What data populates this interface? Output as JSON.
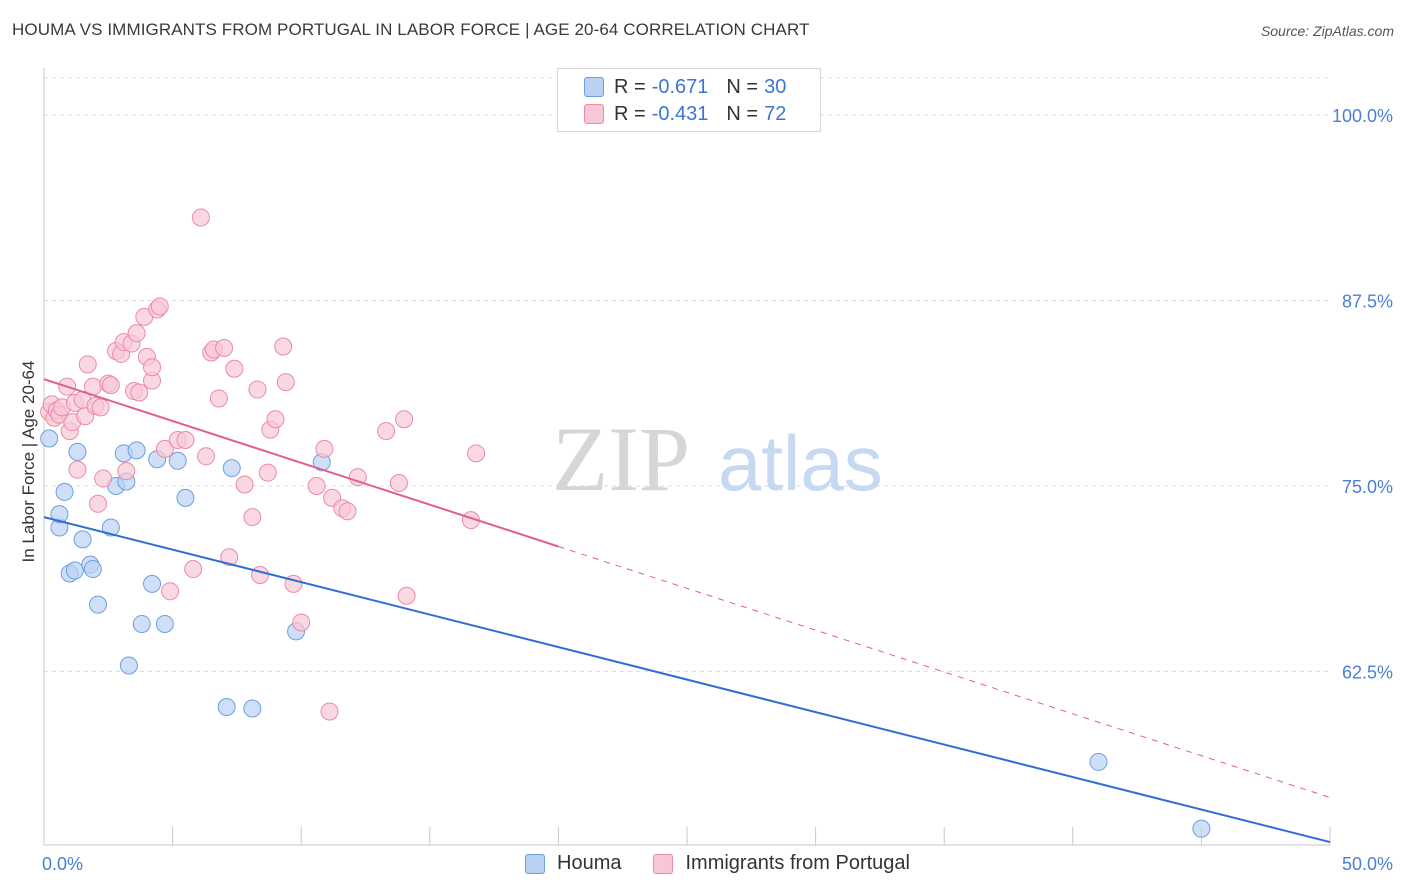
{
  "header": {
    "title": "HOUMA VS IMMIGRANTS FROM PORTUGAL IN LABOR FORCE | AGE 20-64 CORRELATION CHART",
    "source": "Source: ZipAtlas.com"
  },
  "legend": {
    "rows": [
      {
        "r_label": "R =",
        "r_value": "-0.671",
        "n_label": "N =",
        "n_value": "30"
      },
      {
        "r_label": "R =",
        "r_value": "-0.431",
        "n_label": "N =",
        "n_value": "72"
      }
    ]
  },
  "bottom_legend": {
    "series_1": "Houma",
    "series_2": "Immigrants from Portugal"
  },
  "watermark": {
    "zip": "ZIP",
    "atlas": "atlas"
  },
  "colors": {
    "houma_fill": "#b9d1f3",
    "houma_stroke": "#6e9fe0",
    "houma_line": "#2f6fd1",
    "portugal_fill": "#f8c7d6",
    "portugal_stroke": "#eb8aa9",
    "portugal_line": "#e0608a",
    "tick_label": "#4a7fd4",
    "grid": "#dcdcdc"
  },
  "chart_data": {
    "type": "scatter",
    "title": "HOUMA VS IMMIGRANTS FROM PORTUGAL IN LABOR FORCE | AGE 20-64 CORRELATION CHART",
    "xlabel": "",
    "ylabel": "In Labor Force | Age 20-64",
    "xlim": [
      0,
      50
    ],
    "ylim": [
      50.8,
      102.5
    ],
    "y_ticks": [
      62.5,
      75.0,
      87.5,
      100.0
    ],
    "y_tick_labels": [
      "62.5%",
      "75.0%",
      "87.5%",
      "100.0%"
    ],
    "x_tick_labels": [
      "0.0%",
      "50.0%"
    ],
    "x_minor_ticks": [
      5,
      10,
      15,
      20,
      25,
      30,
      35,
      40,
      45
    ],
    "grid": true,
    "series": [
      {
        "name": "Houma",
        "r": -0.671,
        "n": 30,
        "trend": {
          "x0": 0,
          "y0": 72.9,
          "x1": 50,
          "y1": 51.0,
          "dashed_from": null
        },
        "points": [
          [
            0.2,
            78.2
          ],
          [
            0.6,
            72.2
          ],
          [
            0.6,
            73.1
          ],
          [
            0.8,
            74.6
          ],
          [
            1.0,
            69.1
          ],
          [
            1.2,
            69.3
          ],
          [
            1.3,
            77.3
          ],
          [
            1.5,
            71.4
          ],
          [
            1.8,
            69.7
          ],
          [
            1.9,
            69.4
          ],
          [
            2.1,
            67.0
          ],
          [
            2.6,
            72.2
          ],
          [
            2.8,
            75.0
          ],
          [
            3.1,
            77.2
          ],
          [
            3.2,
            75.3
          ],
          [
            3.3,
            62.9
          ],
          [
            3.6,
            77.4
          ],
          [
            3.8,
            65.7
          ],
          [
            4.2,
            68.4
          ],
          [
            4.4,
            76.8
          ],
          [
            4.7,
            65.7
          ],
          [
            5.2,
            76.7
          ],
          [
            5.5,
            74.2
          ],
          [
            7.1,
            60.1
          ],
          [
            7.3,
            76.2
          ],
          [
            8.1,
            60.0
          ],
          [
            9.8,
            65.2
          ],
          [
            10.8,
            76.6
          ],
          [
            41.0,
            56.4
          ],
          [
            45.0,
            51.9
          ]
        ]
      },
      {
        "name": "Immigrants from Portugal",
        "r": -0.431,
        "n": 72,
        "trend": {
          "x0": 0,
          "y0": 82.2,
          "x1": 50,
          "y1": 54.0,
          "dashed_from": 20
        },
        "points": [
          [
            0.2,
            80.0
          ],
          [
            0.3,
            80.5
          ],
          [
            0.4,
            79.6
          ],
          [
            0.5,
            80.1
          ],
          [
            0.6,
            79.8
          ],
          [
            0.7,
            80.3
          ],
          [
            0.9,
            81.7
          ],
          [
            1.0,
            78.7
          ],
          [
            1.1,
            79.3
          ],
          [
            1.2,
            80.6
          ],
          [
            1.3,
            76.1
          ],
          [
            1.5,
            80.8
          ],
          [
            1.6,
            79.7
          ],
          [
            1.7,
            83.2
          ],
          [
            1.9,
            81.7
          ],
          [
            2.0,
            80.4
          ],
          [
            2.1,
            73.8
          ],
          [
            2.2,
            80.3
          ],
          [
            2.3,
            75.5
          ],
          [
            2.5,
            81.9
          ],
          [
            2.6,
            81.8
          ],
          [
            2.8,
            84.1
          ],
          [
            3.0,
            83.9
          ],
          [
            3.1,
            84.7
          ],
          [
            3.2,
            76.0
          ],
          [
            3.4,
            84.6
          ],
          [
            3.5,
            81.4
          ],
          [
            3.6,
            85.3
          ],
          [
            3.7,
            81.3
          ],
          [
            3.9,
            86.4
          ],
          [
            4.0,
            83.7
          ],
          [
            4.2,
            82.1
          ],
          [
            4.2,
            83.0
          ],
          [
            4.4,
            86.9
          ],
          [
            4.5,
            87.1
          ],
          [
            4.7,
            77.5
          ],
          [
            4.9,
            67.9
          ],
          [
            5.2,
            78.1
          ],
          [
            5.5,
            78.1
          ],
          [
            5.8,
            69.4
          ],
          [
            6.1,
            93.1
          ],
          [
            6.3,
            77.0
          ],
          [
            6.5,
            84.0
          ],
          [
            6.6,
            84.2
          ],
          [
            6.8,
            80.9
          ],
          [
            7.0,
            84.3
          ],
          [
            7.2,
            70.2
          ],
          [
            7.4,
            82.9
          ],
          [
            7.8,
            75.1
          ],
          [
            8.1,
            72.9
          ],
          [
            8.3,
            81.5
          ],
          [
            8.4,
            69.0
          ],
          [
            8.7,
            75.9
          ],
          [
            8.8,
            78.8
          ],
          [
            9.0,
            79.5
          ],
          [
            9.3,
            84.4
          ],
          [
            9.4,
            82.0
          ],
          [
            9.7,
            68.4
          ],
          [
            10.0,
            65.8
          ],
          [
            10.6,
            75.0
          ],
          [
            10.9,
            77.5
          ],
          [
            11.1,
            59.8
          ],
          [
            11.2,
            74.2
          ],
          [
            11.6,
            73.5
          ],
          [
            11.8,
            73.3
          ],
          [
            12.2,
            75.6
          ],
          [
            13.3,
            78.7
          ],
          [
            13.8,
            75.2
          ],
          [
            14.0,
            79.5
          ],
          [
            14.1,
            67.6
          ],
          [
            16.8,
            77.2
          ],
          [
            16.6,
            72.7
          ]
        ]
      }
    ]
  }
}
